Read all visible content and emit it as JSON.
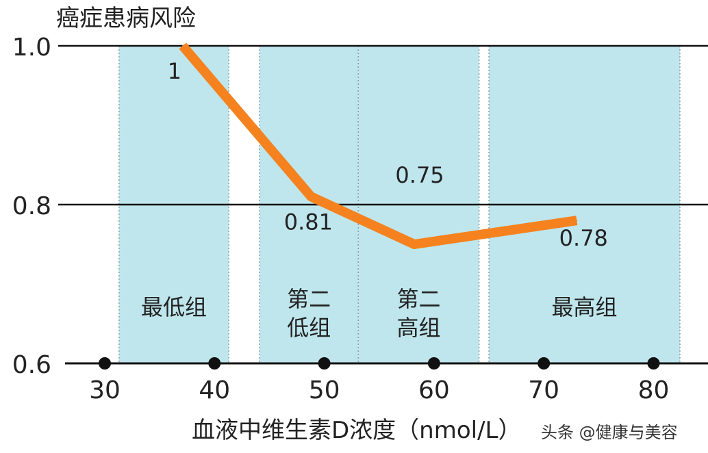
{
  "chart_data": {
    "type": "line",
    "title": "癌症患病风险",
    "xlabel": "血液中维生素D浓度（nmol/L）",
    "ylabel": "",
    "xlim": [
      27.9,
      82.5
    ],
    "ylim": [
      0.6,
      1.0
    ],
    "x_ticks": [
      30,
      40,
      50,
      60,
      70,
      80
    ],
    "y_ticks": [
      0.6,
      0.8,
      1.0
    ],
    "y_tick_labels": [
      "0.6",
      "0.8",
      "1.0"
    ],
    "grid": "horizontal",
    "bands": [
      {
        "label": [
          "最低组"
        ],
        "x": [
          31.3,
          41.3
        ]
      },
      {
        "label": [
          "第二",
          "低组"
        ],
        "x": [
          44.1,
          53.1
        ]
      },
      {
        "label": [
          "第二",
          "高组"
        ],
        "x": [
          53.1,
          64.1
        ]
      },
      {
        "label": [
          "最高组"
        ],
        "x": [
          65.0,
          82.4
        ]
      }
    ],
    "series": [
      {
        "x": [
          37.1,
          48.8,
          58.2,
          73.0
        ],
        "y": [
          1.0,
          0.81,
          0.75,
          0.78
        ],
        "labels": [
          "1",
          "0.81",
          "0.75",
          "0.78"
        ]
      }
    ],
    "colors": {
      "line": "#f5821f",
      "band": "#bfe6ec",
      "band_border": "#8aa0a6",
      "axis": "#111111"
    }
  },
  "watermark": "头条 @健康与美容"
}
